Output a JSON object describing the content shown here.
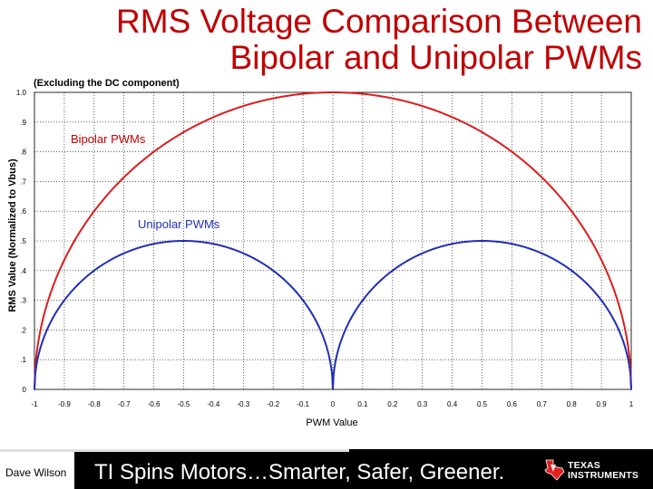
{
  "slide": {
    "title": "RMS Voltage Comparison Between Bipolar and Unipolar PWMs",
    "subtitle": "(Excluding the DC component)",
    "author": "Dave Wilson",
    "tagline": "TI Spins Motors…Smarter, Safer, Greener.",
    "logo_text": "TEXAS\nINSTRUMENTS",
    "logo_icon": "texas-state-icon"
  },
  "colors": {
    "title": "#c00000",
    "bipolar": "#dd1c1c",
    "unipolar": "#1f2fb8",
    "grid": "#000000",
    "plot_bg": "#ffffff"
  },
  "chart_data": {
    "type": "line",
    "xlabel": "PWM Value",
    "ylabel": "RMS Value (Normalized to Vbus)",
    "xlim": [
      -1,
      1
    ],
    "ylim": [
      0,
      1
    ],
    "x_ticks": [
      "-1",
      "-0.9",
      "-0.8",
      "-0.7",
      "-0.6",
      "-0.5",
      "-0.4",
      "-0.3",
      "-0.2",
      "-0.1",
      "0",
      "0.1",
      "0.2",
      "0.3",
      "0.4",
      "0.5",
      "0.6",
      "0.7",
      "0.8",
      "0.9",
      "1"
    ],
    "y_ticks": [
      "0",
      ".1",
      ".2",
      ".3",
      ".4",
      ".5",
      ".6",
      ".7",
      ".8",
      ".9",
      "1.0"
    ],
    "grid": true,
    "series": [
      {
        "name": "Bipolar PWMs",
        "x": [
          -1,
          -0.95,
          -0.9,
          -0.85,
          -0.8,
          -0.75,
          -0.7,
          -0.65,
          -0.6,
          -0.55,
          -0.5,
          -0.45,
          -0.4,
          -0.35,
          -0.3,
          -0.25,
          -0.2,
          -0.15,
          -0.1,
          -0.05,
          0,
          0.05,
          0.1,
          0.15,
          0.2,
          0.25,
          0.3,
          0.35,
          0.4,
          0.45,
          0.5,
          0.55,
          0.6,
          0.65,
          0.7,
          0.75,
          0.8,
          0.85,
          0.9,
          0.95,
          1
        ],
        "y": [
          0,
          0.312,
          0.436,
          0.527,
          0.6,
          0.661,
          0.714,
          0.76,
          0.8,
          0.835,
          0.866,
          0.893,
          0.917,
          0.937,
          0.954,
          0.968,
          0.98,
          0.989,
          0.995,
          0.999,
          1,
          0.999,
          0.995,
          0.989,
          0.98,
          0.968,
          0.954,
          0.937,
          0.917,
          0.893,
          0.866,
          0.835,
          0.8,
          0.76,
          0.714,
          0.661,
          0.6,
          0.527,
          0.436,
          0.312,
          0
        ]
      },
      {
        "name": "Unipolar PWMs",
        "x": [
          -1,
          -0.95,
          -0.9,
          -0.85,
          -0.8,
          -0.75,
          -0.7,
          -0.65,
          -0.6,
          -0.55,
          -0.5,
          -0.45,
          -0.4,
          -0.35,
          -0.3,
          -0.25,
          -0.2,
          -0.15,
          -0.1,
          -0.05,
          0,
          0.05,
          0.1,
          0.15,
          0.2,
          0.25,
          0.3,
          0.35,
          0.4,
          0.45,
          0.5,
          0.55,
          0.6,
          0.65,
          0.7,
          0.75,
          0.8,
          0.85,
          0.9,
          0.95,
          1
        ],
        "y": [
          0,
          0.218,
          0.3,
          0.357,
          0.4,
          0.433,
          0.458,
          0.477,
          0.49,
          0.497,
          0.5,
          0.497,
          0.49,
          0.477,
          0.458,
          0.433,
          0.4,
          0.357,
          0.3,
          0.218,
          0,
          0.218,
          0.3,
          0.357,
          0.4,
          0.433,
          0.458,
          0.477,
          0.49,
          0.497,
          0.5,
          0.497,
          0.49,
          0.477,
          0.458,
          0.433,
          0.4,
          0.357,
          0.3,
          0.218,
          0
        ]
      }
    ]
  }
}
